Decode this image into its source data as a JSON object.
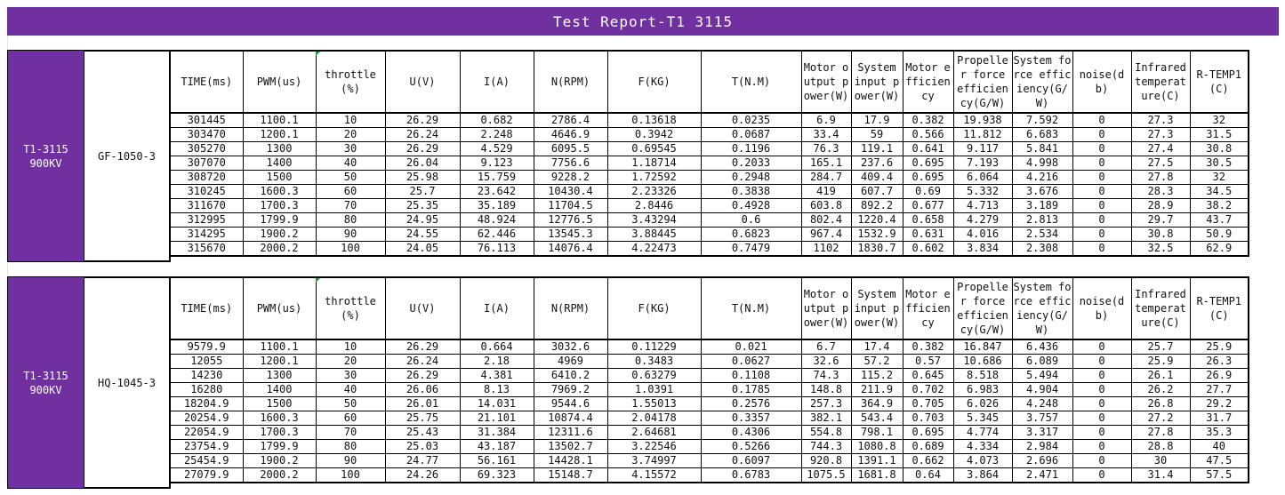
{
  "report": {
    "title": "Test Report-T1 3115"
  },
  "columns": [
    "TIME(ms)",
    "PWM(us)",
    "throttle(%)",
    "U(V)",
    "I(A)",
    "N(RPM)",
    "F(KG)",
    "T(N.M)",
    "Motor output power(W)",
    "System input power(W)",
    "Motor efficiency",
    "Propeller force efficiency(G/W)",
    "System force efficiency(G/W)",
    "noise(db)",
    "Infrared temperature(C)",
    "R-TEMP1(C)"
  ],
  "blocks": [
    {
      "motor_line1": "T1-3115",
      "motor_line2": "900KV",
      "propeller": "GF-1050-3",
      "rows": [
        [
          "301445",
          "1100.1",
          "10",
          "26.29",
          "0.682",
          "2786.4",
          "0.13618",
          "0.0235",
          "6.9",
          "17.9",
          "0.382",
          "19.938",
          "7.592",
          "0",
          "27.3",
          "32"
        ],
        [
          "303470",
          "1200.1",
          "20",
          "26.24",
          "2.248",
          "4646.9",
          "0.3942",
          "0.0687",
          "33.4",
          "59",
          "0.566",
          "11.812",
          "6.683",
          "0",
          "27.3",
          "31.5"
        ],
        [
          "305270",
          "1300",
          "30",
          "26.29",
          "4.529",
          "6095.5",
          "0.69545",
          "0.1196",
          "76.3",
          "119.1",
          "0.641",
          "9.117",
          "5.841",
          "0",
          "27.4",
          "30.8"
        ],
        [
          "307070",
          "1400",
          "40",
          "26.04",
          "9.123",
          "7756.6",
          "1.18714",
          "0.2033",
          "165.1",
          "237.6",
          "0.695",
          "7.193",
          "4.998",
          "0",
          "27.5",
          "30.5"
        ],
        [
          "308720",
          "1500",
          "50",
          "25.98",
          "15.759",
          "9228.2",
          "1.72592",
          "0.2948",
          "284.7",
          "409.4",
          "0.695",
          "6.064",
          "4.216",
          "0",
          "27.8",
          "32"
        ],
        [
          "310245",
          "1600.3",
          "60",
          "25.7",
          "23.642",
          "10430.4",
          "2.23326",
          "0.3838",
          "419",
          "607.7",
          "0.69",
          "5.332",
          "3.676",
          "0",
          "28.3",
          "34.5"
        ],
        [
          "311670",
          "1700.3",
          "70",
          "25.35",
          "35.189",
          "11704.5",
          "2.8446",
          "0.4928",
          "603.8",
          "892.2",
          "0.677",
          "4.713",
          "3.189",
          "0",
          "28.9",
          "38.2"
        ],
        [
          "312995",
          "1799.9",
          "80",
          "24.95",
          "48.924",
          "12776.5",
          "3.43294",
          "0.6",
          "802.4",
          "1220.4",
          "0.658",
          "4.279",
          "2.813",
          "0",
          "29.7",
          "43.7"
        ],
        [
          "314295",
          "1900.2",
          "90",
          "24.55",
          "62.446",
          "13545.3",
          "3.88445",
          "0.6823",
          "967.4",
          "1532.9",
          "0.631",
          "4.016",
          "2.534",
          "0",
          "30.8",
          "50.9"
        ],
        [
          "315670",
          "2000.2",
          "100",
          "24.05",
          "76.113",
          "14076.4",
          "4.22473",
          "0.7479",
          "1102",
          "1830.7",
          "0.602",
          "3.834",
          "2.308",
          "0",
          "32.5",
          "62.9"
        ]
      ]
    },
    {
      "motor_line1": "T1-3115",
      "motor_line2": "900KV",
      "propeller": "HQ-1045-3",
      "rows": [
        [
          "9579.9",
          "1100.1",
          "10",
          "26.29",
          "0.664",
          "3032.6",
          "0.11229",
          "0.021",
          "6.7",
          "17.4",
          "0.382",
          "16.847",
          "6.436",
          "0",
          "25.7",
          "25.9"
        ],
        [
          "12055",
          "1200.1",
          "20",
          "26.24",
          "2.18",
          "4969",
          "0.3483",
          "0.0627",
          "32.6",
          "57.2",
          "0.57",
          "10.686",
          "6.089",
          "0",
          "25.9",
          "26.3"
        ],
        [
          "14230",
          "1300",
          "30",
          "26.29",
          "4.381",
          "6410.2",
          "0.63279",
          "0.1108",
          "74.3",
          "115.2",
          "0.645",
          "8.518",
          "5.494",
          "0",
          "26.1",
          "26.9"
        ],
        [
          "16280",
          "1400",
          "40",
          "26.06",
          "8.13",
          "7969.2",
          "1.0391",
          "0.1785",
          "148.8",
          "211.9",
          "0.702",
          "6.983",
          "4.904",
          "0",
          "26.2",
          "27.7"
        ],
        [
          "18204.9",
          "1500",
          "50",
          "26.01",
          "14.031",
          "9544.6",
          "1.55013",
          "0.2576",
          "257.3",
          "364.9",
          "0.705",
          "6.026",
          "4.248",
          "0",
          "26.8",
          "29.2"
        ],
        [
          "20254.9",
          "1600.3",
          "60",
          "25.75",
          "21.101",
          "10874.4",
          "2.04178",
          "0.3357",
          "382.1",
          "543.4",
          "0.703",
          "5.345",
          "3.757",
          "0",
          "27.2",
          "31.7"
        ],
        [
          "22054.9",
          "1700.3",
          "70",
          "25.43",
          "31.384",
          "12311.6",
          "2.64681",
          "0.4306",
          "554.8",
          "798.1",
          "0.695",
          "4.774",
          "3.317",
          "0",
          "27.8",
          "35.3"
        ],
        [
          "23754.9",
          "1799.9",
          "80",
          "25.03",
          "43.187",
          "13502.7",
          "3.22546",
          "0.5266",
          "744.3",
          "1080.8",
          "0.689",
          "4.334",
          "2.984",
          "0",
          "28.8",
          "40"
        ],
        [
          "25454.9",
          "1900.2",
          "90",
          "24.77",
          "56.161",
          "14428.1",
          "3.74997",
          "0.6097",
          "920.8",
          "1391.1",
          "0.662",
          "4.073",
          "2.696",
          "0",
          "30",
          "47.5"
        ],
        [
          "27079.9",
          "2000.2",
          "100",
          "24.26",
          "69.323",
          "15148.7",
          "4.15572",
          "0.6783",
          "1075.5",
          "1681.8",
          "0.64",
          "3.864",
          "2.471",
          "0",
          "31.4",
          "57.5"
        ]
      ]
    }
  ]
}
